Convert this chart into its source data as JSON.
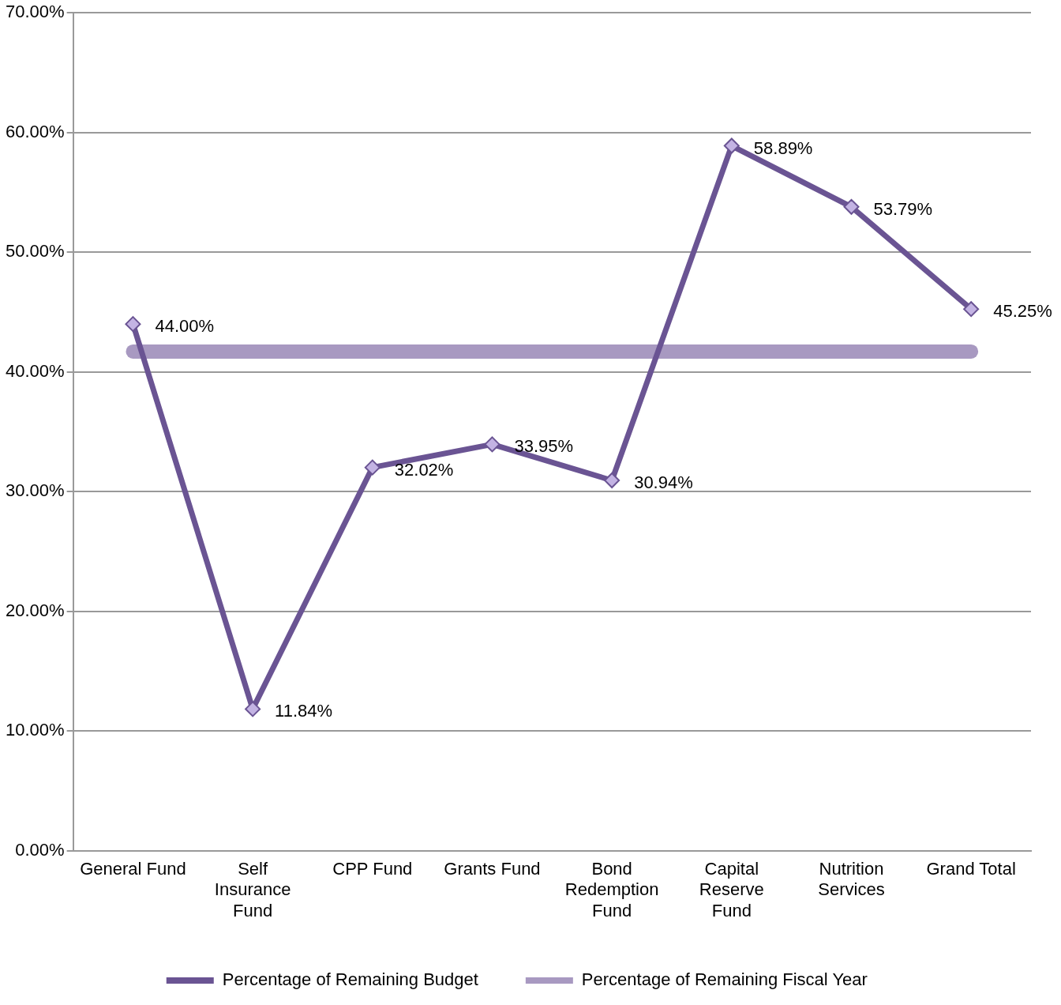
{
  "chart_data": {
    "type": "line",
    "categories": [
      "General Fund",
      "Self Insurance Fund",
      "CPP Fund",
      "Grants Fund",
      "Bond Redemption Fund",
      "Capital Reserve Fund",
      "Nutrition Services",
      "Grand Total"
    ],
    "series": [
      {
        "name": "Percentage of Remaining Budget",
        "color": "#6a5493",
        "marker": "diamond",
        "values": [
          44.0,
          11.84,
          32.02,
          33.95,
          30.94,
          58.89,
          53.79,
          45.25
        ],
        "value_labels": [
          "44.00%",
          "11.84%",
          "32.02%",
          "33.95%",
          "30.94%",
          "58.89%",
          "53.79%",
          "45.25%"
        ]
      },
      {
        "name": "Percentage of Remaining Fiscal Year",
        "color": "#a899c1",
        "marker": "none",
        "values": [
          41.7,
          41.7,
          41.7,
          41.7,
          41.7,
          41.7,
          41.7,
          41.7
        ]
      }
    ],
    "ylim": [
      0,
      70
    ],
    "yticks": [
      {
        "value": 0,
        "label": "0.00%"
      },
      {
        "value": 10,
        "label": "10.00%"
      },
      {
        "value": 20,
        "label": "20.00%"
      },
      {
        "value": 30,
        "label": "30.00%"
      },
      {
        "value": 40,
        "label": "40.00%"
      },
      {
        "value": 50,
        "label": "50.00%"
      },
      {
        "value": 60,
        "label": "60.00%"
      },
      {
        "value": 70,
        "label": "70.00%"
      }
    ],
    "grid": "y",
    "legend": "bottom"
  }
}
